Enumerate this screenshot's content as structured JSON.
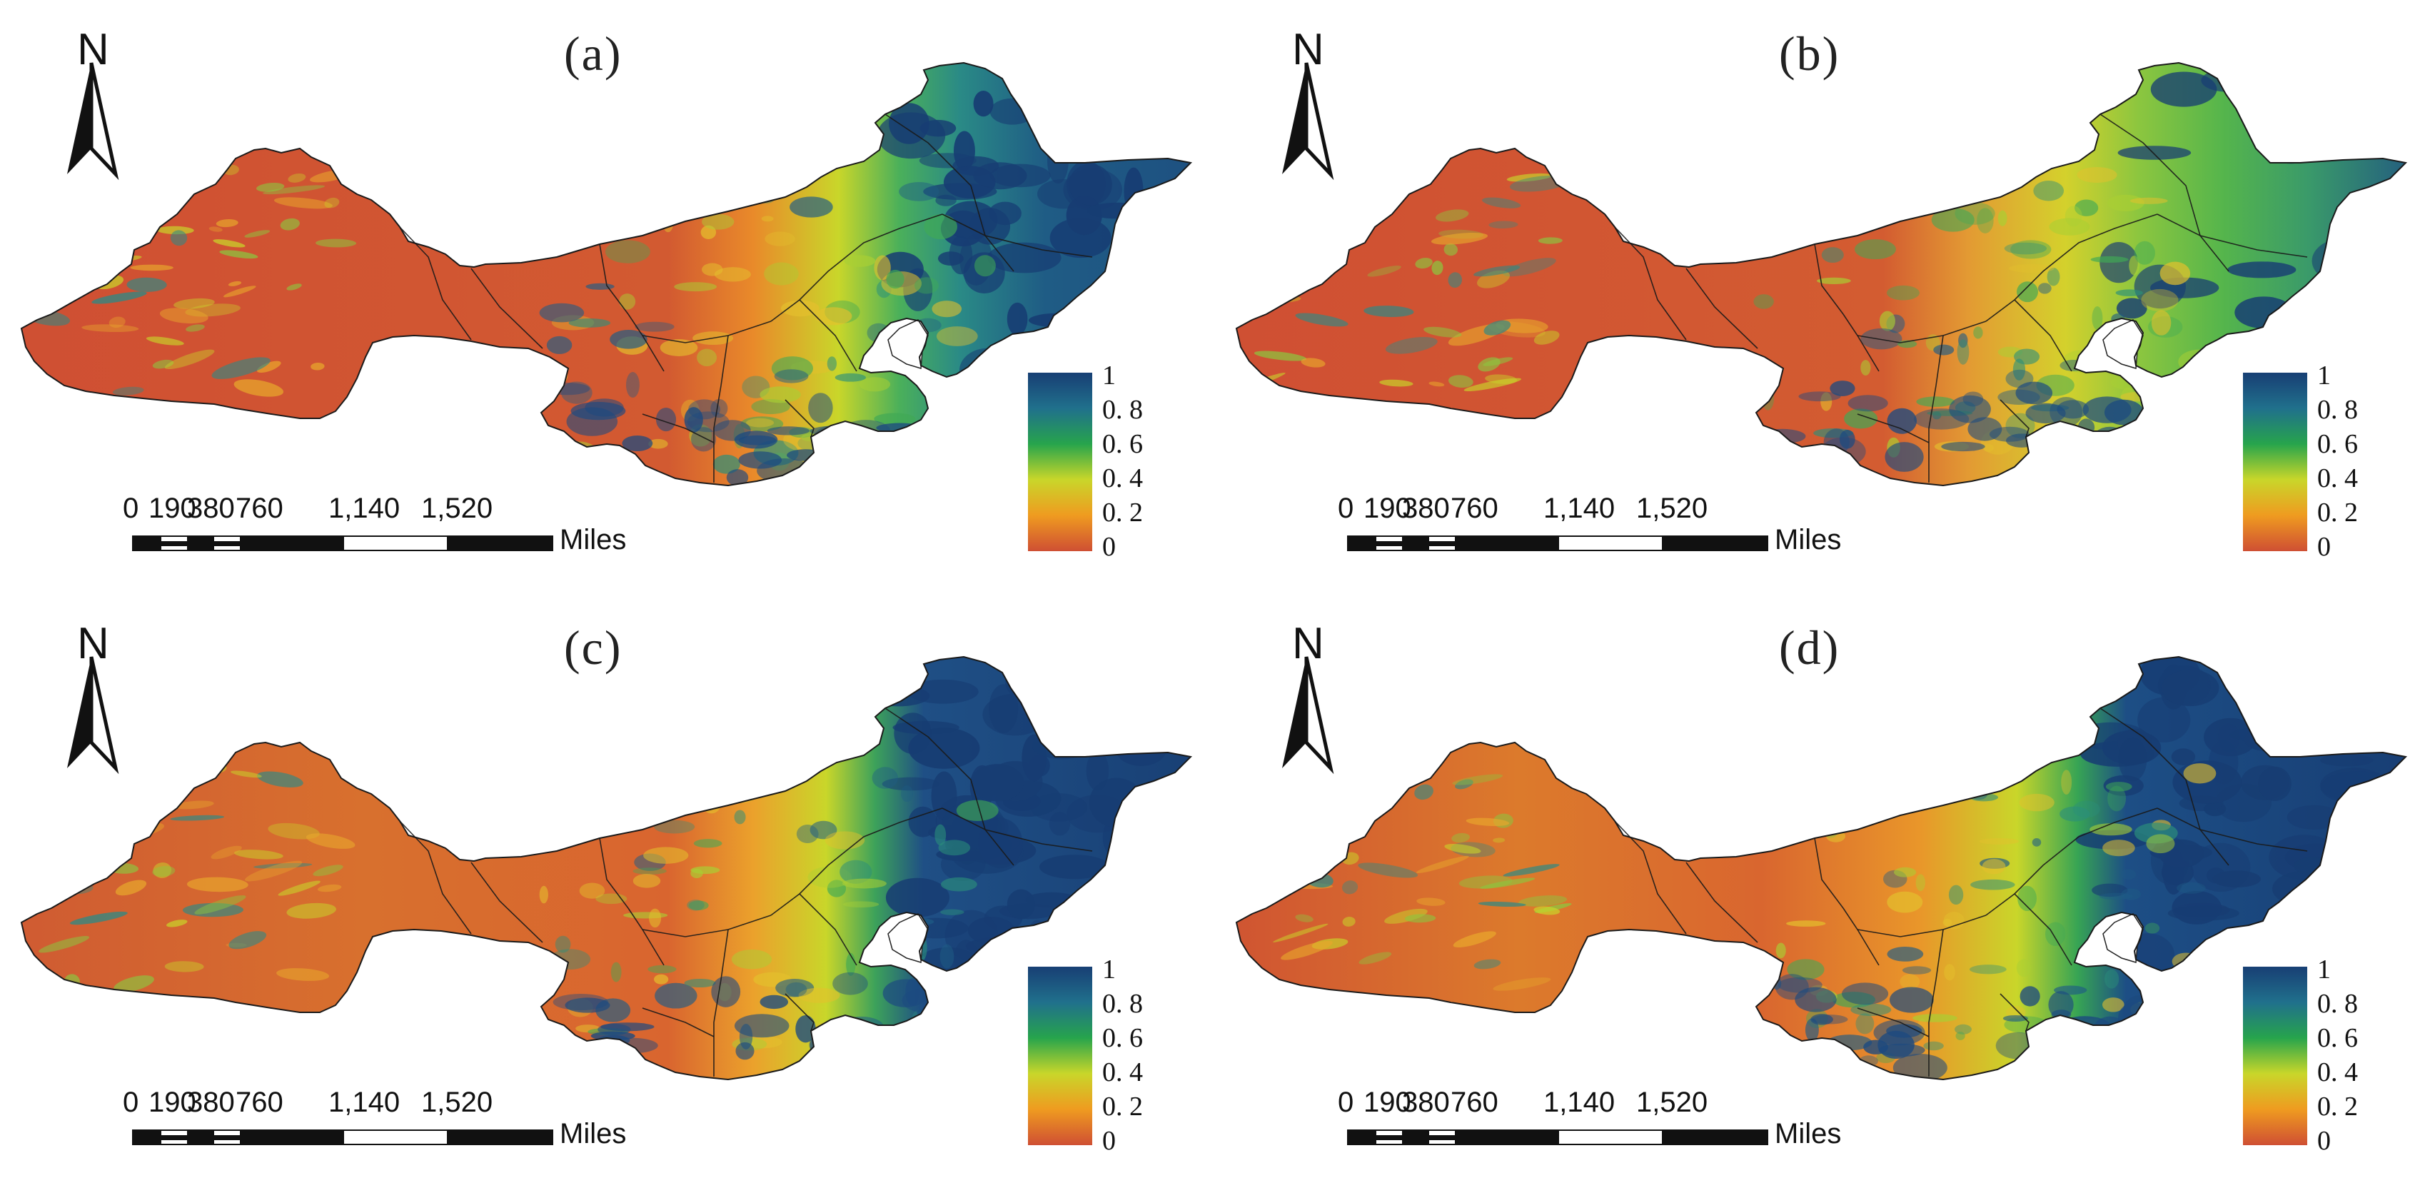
{
  "panels": [
    {
      "label": "(a)",
      "variant": "a"
    },
    {
      "label": "(b)",
      "variant": "b"
    },
    {
      "label": "(c)",
      "variant": "c"
    },
    {
      "label": "(d)",
      "variant": "d"
    }
  ],
  "north_arrow": {
    "letter": "N",
    "icon": "north-arrow-icon"
  },
  "legend": {
    "ticks": [
      "1",
      "0. 8",
      "0. 6",
      "0. 4",
      "0. 2",
      "0"
    ],
    "colors": [
      "#183f74",
      "#20708c",
      "#27a44c",
      "#c9d62a",
      "#ef9b20",
      "#cf4f33"
    ]
  },
  "scale_bar": {
    "ticks": [
      "0",
      "190",
      "380",
      "760",
      "1,140",
      "1,520"
    ],
    "unit": "Miles"
  }
}
